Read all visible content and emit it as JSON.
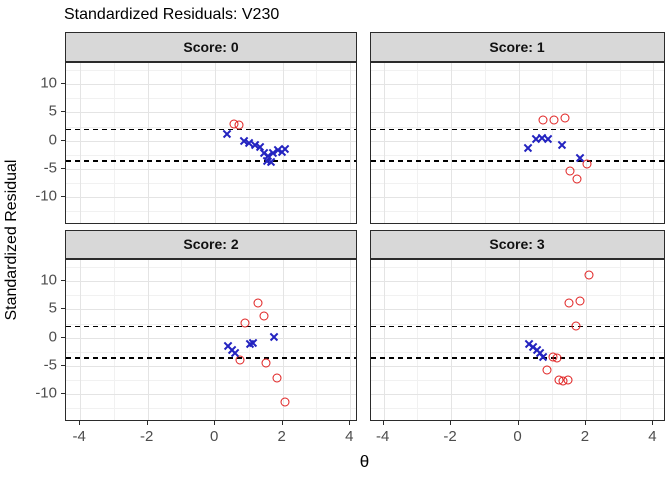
{
  "chart_data": {
    "type": "scatter",
    "title": "Standardized Residuals: V230",
    "xlabel": "θ",
    "ylabel": "Standardized Residual",
    "legend": "none",
    "grid": "major+minor",
    "x_ticks": [
      -4,
      -2,
      0,
      2,
      4
    ],
    "y_ticks": [
      10,
      5,
      0,
      -5,
      -10
    ],
    "x_minor": [
      -3,
      -1,
      1,
      3
    ],
    "y_minor": [
      -12.5,
      -7.5,
      -2.5,
      2.5,
      7.5,
      12.5
    ],
    "xlim": [
      -4.4,
      4.3
    ],
    "ylim": [
      -14.8,
      13.8
    ],
    "reference_lines_y": [
      2.1,
      -3.4
    ],
    "colors": {
      "circle_marker": "#e02020",
      "cross_marker": "#2323c0",
      "strip_bg": "#d8d8d8",
      "panel_border": "#2b2b2b",
      "grid_major": "#e4e4e4",
      "grid_minor": "#f1f1f1",
      "reference_line": "#000000",
      "tick_label": "#4d4d4d"
    },
    "facets": [
      {
        "label": "Score: 0",
        "circles": [
          [
            0.56,
            3.0
          ],
          [
            0.71,
            2.78
          ]
        ],
        "crosses": [
          [
            0.35,
            1.2
          ],
          [
            0.85,
            0.0
          ],
          [
            1.0,
            -0.45
          ],
          [
            1.17,
            -0.8
          ],
          [
            1.32,
            -1.0
          ],
          [
            1.45,
            -2.2
          ],
          [
            1.57,
            -2.6
          ],
          [
            1.52,
            -3.55
          ],
          [
            1.66,
            -3.75
          ],
          [
            1.72,
            -2.2
          ],
          [
            1.85,
            -1.7
          ],
          [
            1.98,
            -2.0
          ],
          [
            2.08,
            -1.5
          ]
        ]
      },
      {
        "label": "Score: 1",
        "circles": [
          [
            0.72,
            3.7
          ],
          [
            1.05,
            3.6
          ],
          [
            1.37,
            4.0
          ],
          [
            1.52,
            -5.4
          ],
          [
            1.74,
            -6.8
          ],
          [
            2.04,
            -4.2
          ]
        ],
        "crosses": [
          [
            0.28,
            -1.2
          ],
          [
            0.53,
            0.3
          ],
          [
            0.7,
            0.55
          ],
          [
            0.87,
            0.27
          ],
          [
            1.28,
            -0.75
          ],
          [
            1.81,
            -3.1
          ]
        ]
      },
      {
        "label": "Score: 2",
        "circles": [
          [
            0.89,
            2.6
          ],
          [
            1.27,
            6.1
          ],
          [
            1.44,
            3.8
          ],
          [
            0.74,
            -4.0
          ],
          [
            1.51,
            -4.5
          ],
          [
            1.84,
            -7.1
          ],
          [
            2.07,
            -11.4
          ]
        ],
        "crosses": [
          [
            0.38,
            -1.5
          ],
          [
            0.5,
            -2.1
          ],
          [
            0.6,
            -2.7
          ],
          [
            1.02,
            -1.1
          ],
          [
            1.13,
            -0.85
          ],
          [
            1.75,
            0.1
          ]
        ]
      },
      {
        "label": "Score: 3",
        "circles": [
          [
            2.09,
            11.0
          ],
          [
            1.49,
            6.1
          ],
          [
            1.81,
            6.5
          ],
          [
            1.71,
            2.0
          ],
          [
            1.03,
            -3.45
          ],
          [
            1.15,
            -3.55
          ],
          [
            0.85,
            -5.7
          ],
          [
            1.21,
            -7.45
          ],
          [
            1.33,
            -7.6
          ],
          [
            1.48,
            -7.5
          ]
        ],
        "crosses": [
          [
            0.3,
            -1.1
          ],
          [
            0.44,
            -1.7
          ],
          [
            0.55,
            -2.1
          ],
          [
            0.65,
            -2.7
          ],
          [
            0.72,
            -3.35
          ]
        ]
      }
    ]
  }
}
